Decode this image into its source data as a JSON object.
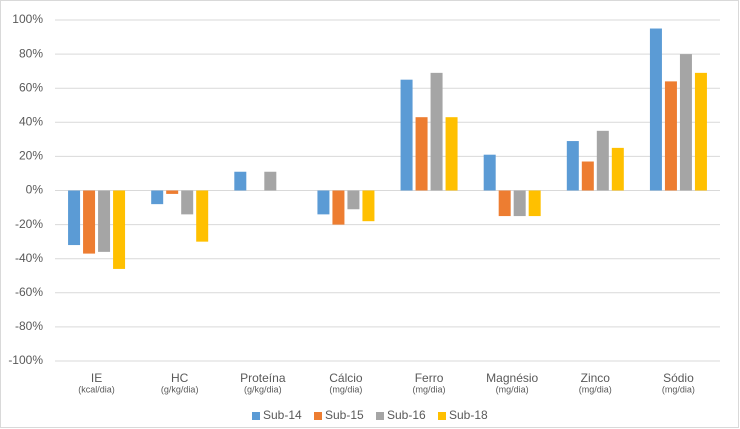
{
  "chart_data": {
    "type": "bar",
    "categories": [
      "IE",
      "HC",
      "Proteína",
      "Cálcio",
      "Ferro",
      "Magnésio",
      "Zinco",
      "Sódio"
    ],
    "category_units": [
      "(kcal/dia)",
      "(g/kg/dia)",
      "(g/kg/dia)",
      "(mg/dia)",
      "(mg/dia)",
      "(mg/dia)",
      "(mg/dia)",
      "(mg/dia)"
    ],
    "series": [
      {
        "name": "Sub-14",
        "color": "#5b9bd5",
        "values": [
          -32,
          -8,
          11,
          -14,
          65,
          21,
          29,
          95
        ]
      },
      {
        "name": "Sub-15",
        "color": "#ed7d31",
        "values": [
          -37,
          -2,
          0,
          -20,
          43,
          -15,
          17,
          64
        ]
      },
      {
        "name": "Sub-16",
        "color": "#a5a5a5",
        "values": [
          -36,
          -14,
          11,
          -11,
          69,
          -15,
          35,
          80
        ]
      },
      {
        "name": "Sub-18",
        "color": "#ffc000",
        "values": [
          -46,
          -30,
          0,
          -18,
          43,
          -15,
          25,
          69
        ]
      }
    ],
    "ylim": [
      -100,
      100
    ],
    "yticks": [
      {
        "value": -100,
        "label": "-100%"
      },
      {
        "value": -80,
        "label": "-80%"
      },
      {
        "value": -60,
        "label": "-60%"
      },
      {
        "value": -40,
        "label": "-40%"
      },
      {
        "value": -20,
        "label": "-20%"
      },
      {
        "value": 0,
        "label": "0%"
      },
      {
        "value": 20,
        "label": "20%"
      },
      {
        "value": 40,
        "label": "40%"
      },
      {
        "value": 60,
        "label": "60%"
      },
      {
        "value": 80,
        "label": "80%"
      },
      {
        "value": 100,
        "label": "100%"
      }
    ],
    "grid": true,
    "legend": "bottom"
  }
}
